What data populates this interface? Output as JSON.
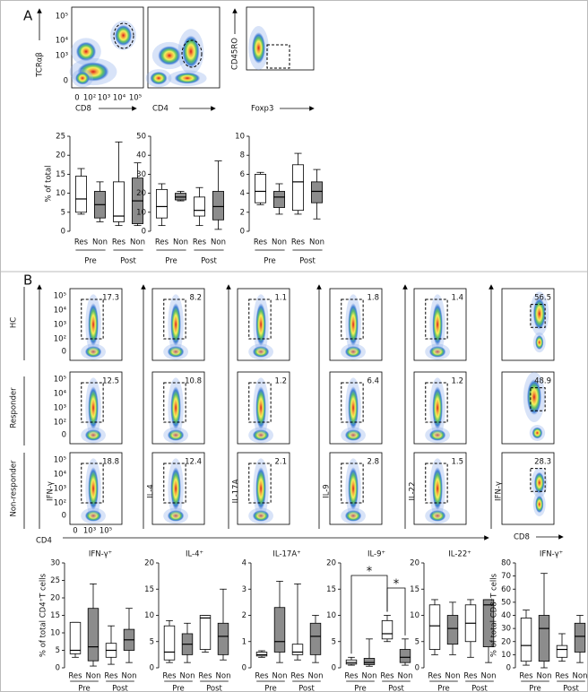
{
  "panel_a": {
    "label": "A",
    "flow_plots": [
      {
        "y_label": "TCRαβ",
        "x_label": "CD8",
        "y_ticks": [
          "10⁵",
          "10⁴",
          "10³",
          "0"
        ],
        "x_ticks": [
          "0",
          "10²",
          "10³",
          "10⁴",
          "10⁵"
        ]
      },
      {
        "x_label": "CD4"
      },
      {
        "y_label": "CD45RO",
        "x_label": "Foxp3"
      }
    ],
    "boxplots": [
      {
        "y_label": "% of total",
        "ylim": [
          0,
          25
        ],
        "yticks": [
          0,
          5,
          10,
          15,
          20,
          25
        ],
        "boxes": [
          {
            "min": 4.5,
            "q1": 5,
            "median": 8.5,
            "q3": 14.5,
            "max": 16.5
          },
          {
            "min": 2.5,
            "q1": 3.5,
            "median": 7,
            "q3": 10.5,
            "max": 13
          },
          {
            "min": 1.5,
            "q1": 2.5,
            "median": 4,
            "q3": 13,
            "max": 23.5
          },
          {
            "min": 1.5,
            "q1": 2,
            "median": 8,
            "q3": 14,
            "max": 18
          }
        ]
      },
      {
        "ylim": [
          0,
          50
        ],
        "yticks": [
          0,
          10,
          20,
          30,
          40,
          50
        ],
        "boxes": [
          {
            "min": 3,
            "q1": 7,
            "median": 13,
            "q3": 22,
            "max": 25
          },
          {
            "min": 16,
            "q1": 16.5,
            "median": 18,
            "q3": 20,
            "max": 21
          },
          {
            "min": 3,
            "q1": 8,
            "median": 11,
            "q3": 18,
            "max": 23
          },
          {
            "min": 1,
            "q1": 6,
            "median": 13,
            "q3": 21,
            "max": 37
          }
        ]
      },
      {
        "ylim": [
          0,
          10
        ],
        "yticks": [
          0,
          2,
          4,
          6,
          8,
          10
        ],
        "boxes": [
          {
            "min": 2.8,
            "q1": 3,
            "median": 4.2,
            "q3": 6,
            "max": 6.2
          },
          {
            "min": 1.8,
            "q1": 2.5,
            "median": 3.6,
            "q3": 4.2,
            "max": 5
          },
          {
            "min": 1.8,
            "q1": 2.2,
            "median": 5.2,
            "q3": 7,
            "max": 8.2
          },
          {
            "min": 1.3,
            "q1": 3,
            "median": 4.2,
            "q3": 5.2,
            "max": 6.5
          }
        ]
      }
    ]
  },
  "panel_b": {
    "label": "B",
    "rows": [
      "HC",
      "Responder",
      "Non-responder"
    ],
    "flow_y_ticks": [
      "10⁵",
      "10⁴",
      "10³",
      "10²",
      "0"
    ],
    "flow_x_ticks": [
      "0",
      "10³",
      "10⁵"
    ],
    "x_labels": [
      "CD4",
      "CD8"
    ],
    "columns": [
      {
        "y_label": "IFN-γ",
        "values": [
          17.3,
          12.5,
          18.8
        ]
      },
      {
        "y_label": "IL-4",
        "values": [
          8.2,
          10.8,
          12.4
        ]
      },
      {
        "y_label": "IL-17A",
        "values": [
          1.1,
          1.2,
          2.1
        ]
      },
      {
        "y_label": "IL-9",
        "values": [
          1.8,
          6.4,
          2.8
        ]
      },
      {
        "y_label": "IL-22",
        "values": [
          1.4,
          1.2,
          1.5
        ]
      },
      {
        "y_label": "IFN-γ",
        "values": [
          56.5,
          48.9,
          28.3
        ]
      }
    ],
    "boxplots": [
      {
        "title": "IFN-γ⁺",
        "y_label": "% of total CD4⁺T cells",
        "ylim": [
          0,
          30
        ],
        "yticks": [
          0,
          5,
          10,
          15,
          20,
          25,
          30
        ],
        "boxes": [
          {
            "min": 3,
            "q1": 4,
            "median": 5,
            "q3": 13,
            "max": 13
          },
          {
            "min": 0.5,
            "q1": 2,
            "median": 6,
            "q3": 17,
            "max": 24
          },
          {
            "min": 1,
            "q1": 3,
            "median": 5,
            "q3": 7,
            "max": 12
          },
          {
            "min": 1.5,
            "q1": 5,
            "median": 8,
            "q3": 11,
            "max": 17
          }
        ]
      },
      {
        "title": "IL-4⁺",
        "ylim": [
          0,
          20
        ],
        "yticks": [
          0,
          5,
          10,
          15,
          20
        ],
        "boxes": [
          {
            "min": 1,
            "q1": 1.5,
            "median": 3,
            "q3": 8,
            "max": 9
          },
          {
            "min": 1,
            "q1": 2.5,
            "median": 4.5,
            "q3": 6.5,
            "max": 8.5
          },
          {
            "min": 3,
            "q1": 3.5,
            "median": 9.5,
            "q3": 10,
            "max": 10
          },
          {
            "min": 1.5,
            "q1": 2.5,
            "median": 6,
            "q3": 8.5,
            "max": 15
          }
        ]
      },
      {
        "title": "IL-17A⁺",
        "ylim": [
          0,
          4
        ],
        "yticks": [
          0,
          1,
          2,
          3,
          4
        ],
        "boxes": [
          {
            "min": 0.4,
            "q1": 0.45,
            "median": 0.5,
            "q3": 0.6,
            "max": 0.65
          },
          {
            "min": 0.2,
            "q1": 0.6,
            "median": 1,
            "q3": 2.3,
            "max": 3.3
          },
          {
            "min": 0.3,
            "q1": 0.5,
            "median": 0.6,
            "q3": 0.9,
            "max": 3.2
          },
          {
            "min": 0.2,
            "q1": 0.5,
            "median": 1.2,
            "q3": 1.7,
            "max": 2
          }
        ]
      },
      {
        "title": "IL-9⁺",
        "ylim": [
          0,
          20
        ],
        "yticks": [
          0,
          5,
          10,
          15,
          20
        ],
        "annotations": [
          "*",
          "*"
        ],
        "boxes": [
          {
            "min": 0.5,
            "q1": 0.7,
            "median": 1,
            "q3": 1.5,
            "max": 2
          },
          {
            "min": 0.3,
            "q1": 0.6,
            "median": 1,
            "q3": 1.8,
            "max": 5.5
          },
          {
            "min": 5,
            "q1": 5.5,
            "median": 6.5,
            "q3": 9,
            "max": 10
          },
          {
            "min": 0.5,
            "q1": 1,
            "median": 2,
            "q3": 3.5,
            "max": 5.5
          }
        ]
      },
      {
        "title": "IL-22⁺",
        "ylim": [
          0,
          20
        ],
        "yticks": [
          0,
          5,
          10,
          15,
          20
        ],
        "boxes": [
          {
            "min": 2.5,
            "q1": 3.5,
            "median": 8,
            "q3": 12,
            "max": 13
          },
          {
            "min": 2.5,
            "q1": 4.5,
            "median": 7.5,
            "q3": 10,
            "max": 12.5
          },
          {
            "min": 2,
            "q1": 5,
            "median": 8.5,
            "q3": 12,
            "max": 13
          },
          {
            "min": 1,
            "q1": 4,
            "median": 12,
            "q3": 13,
            "max": 13
          }
        ]
      },
      {
        "title": "IFN-γ⁺",
        "y_label": "% of total CD8⁺T cells",
        "ylim": [
          0,
          80
        ],
        "yticks": [
          0,
          10,
          20,
          30,
          40,
          50,
          60,
          70,
          80
        ],
        "boxes": [
          {
            "min": 2,
            "q1": 5,
            "median": 17,
            "q3": 38,
            "max": 44
          },
          {
            "min": 0,
            "q1": 5,
            "median": 30,
            "q3": 40,
            "max": 72
          },
          {
            "min": 5,
            "q1": 8,
            "median": 14,
            "q3": 17,
            "max": 26
          },
          {
            "min": 4,
            "q1": 12,
            "median": 24,
            "q3": 34,
            "max": 40
          }
        ]
      }
    ]
  },
  "categories": [
    "Res",
    "Non",
    "Res",
    "Non"
  ],
  "groups": [
    "Pre",
    "Post"
  ],
  "box_colors": [
    "#ffffff",
    "#8c8c8c",
    "#ffffff",
    "#8c8c8c"
  ]
}
